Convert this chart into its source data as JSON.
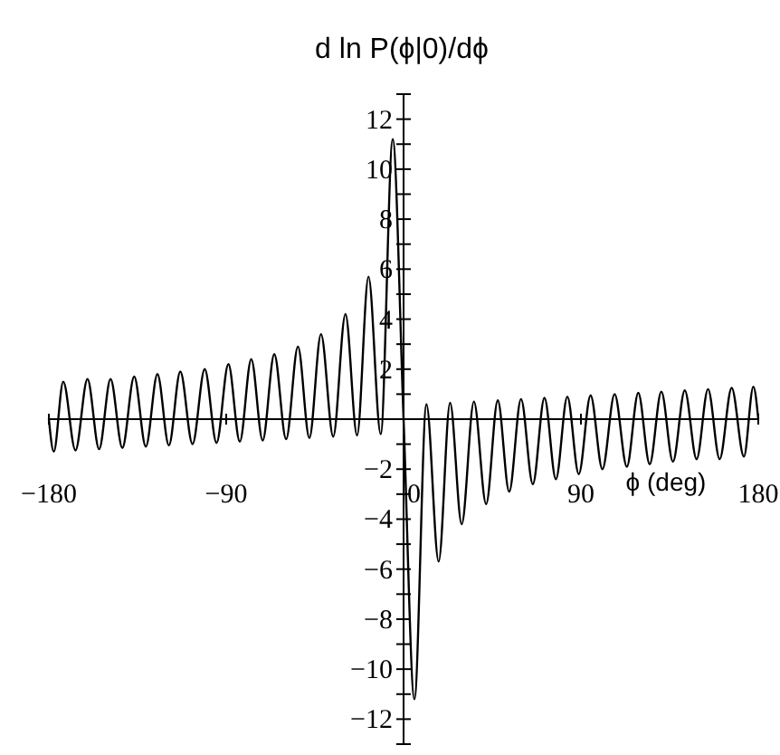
{
  "chart_data": {
    "type": "line",
    "ylabel": "d ln P(ϕ|0)/dϕ",
    "xlabel": "ϕ (deg)",
    "xlim": [
      -180,
      180
    ],
    "xticks": [
      -180,
      -90,
      {
        "value": 0,
        "label": "0"
      },
      90,
      180
    ],
    "ylim": [
      -13,
      13
    ],
    "yticks": [
      {
        "value": -13,
        "label": null
      },
      -12,
      {
        "value": -11,
        "label": null
      },
      -10,
      {
        "value": -9,
        "label": null
      },
      -8,
      {
        "value": -7,
        "label": null
      },
      -6,
      {
        "value": -5,
        "label": null
      },
      -4,
      {
        "value": -3,
        "label": null
      },
      -2,
      {
        "value": -1,
        "label": null
      },
      {
        "value": 1,
        "label": null
      },
      2,
      {
        "value": 3,
        "label": null
      },
      4,
      {
        "value": 5,
        "label": null
      },
      6,
      {
        "value": 7,
        "label": null
      },
      8,
      {
        "value": 9,
        "label": null
      },
      10,
      {
        "value": 11,
        "label": null
      },
      12,
      {
        "value": 13,
        "label": null
      }
    ],
    "grid": false,
    "marker": "none",
    "line_style": "solid",
    "series": [
      {
        "color": "#000000",
        "x": [
          -180,
          -177.5,
          -172.7,
          -166.5,
          -160.4,
          -154.5,
          -148.7,
          -142.7,
          -136.7,
          -130.8,
          -124.9,
          -119.1,
          -113.3,
          -107.1,
          -100.9,
          -94.9,
          -88.9,
          -83.1,
          -77.3,
          -71.5,
          -65.6,
          -59.6,
          -53.6,
          -47.8,
          -41.9,
          -35.7,
          -29.5,
          -23.6,
          -17.8,
          -11.6,
          -5.5,
          0,
          5.5,
          11.6,
          17.8,
          23.6,
          29.5,
          35.7,
          41.9,
          47.8,
          53.6,
          59.6,
          65.6,
          71.5,
          77.3,
          83.1,
          88.9,
          94.9,
          100.9,
          107.1,
          113.3,
          119.1,
          124.9,
          130.8,
          136.7,
          142.7,
          148.7,
          154.5,
          160.4,
          166.5,
          172.7,
          177.5,
          180
        ],
        "values": [
          0,
          -1.3,
          1.5,
          -1.25,
          1.6,
          -1.2,
          1.6,
          -1.15,
          1.7,
          -1.1,
          1.8,
          -1.05,
          1.9,
          -1.0,
          2.0,
          -0.95,
          2.2,
          -0.9,
          2.4,
          -0.85,
          2.6,
          -0.8,
          2.9,
          -0.75,
          3.4,
          -0.7,
          4.2,
          -0.65,
          5.7,
          -0.6,
          11.2,
          0,
          -11.2,
          0.6,
          -5.7,
          0.65,
          -4.2,
          0.7,
          -3.4,
          0.75,
          -2.9,
          0.8,
          -2.6,
          0.85,
          -2.4,
          0.9,
          -2.2,
          0.95,
          -2.0,
          1.0,
          -1.9,
          1.05,
          -1.8,
          1.1,
          -1.7,
          1.15,
          -1.6,
          1.2,
          -1.6,
          1.25,
          -1.5,
          1.3,
          0
        ]
      }
    ]
  }
}
